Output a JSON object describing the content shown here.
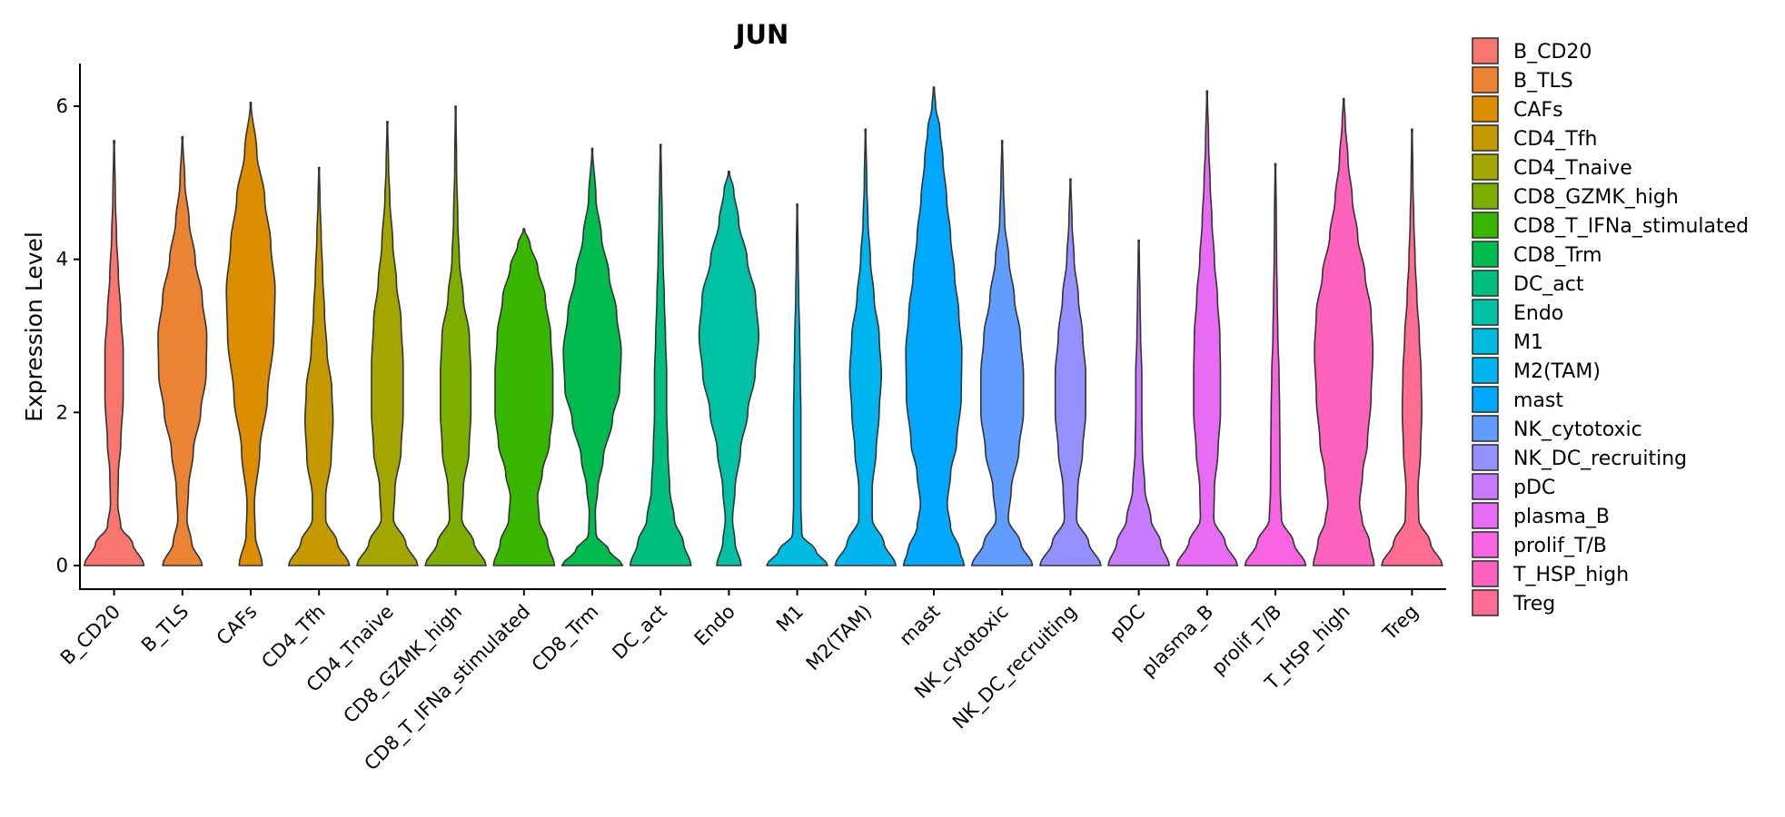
{
  "chart_data": {
    "type": "violin",
    "title": "JUN",
    "xlabel": "",
    "ylabel": "Expression Level",
    "ylim": [
      -0.2,
      6.55
    ],
    "yticks": [
      0,
      2,
      4,
      6
    ],
    "legend_position": "right",
    "grid": false,
    "categories": [
      "B_CD20",
      "B_TLS",
      "CAFs",
      "CD4_Tfh",
      "CD4_Tnaive",
      "CD8_GZMK_high",
      "CD8_T_IFNa_stimulated",
      "CD8_Trm",
      "DC_act",
      "Endo",
      "M1",
      "M2(TAM)",
      "mast",
      "NK_cytotoxic",
      "NK_DC_recruiting",
      "pDC",
      "plasma_B",
      "prolif_T/B",
      "T_HSP_high",
      "Treg"
    ],
    "series": [
      {
        "name": "B_CD20",
        "color": "#F8766D",
        "max": 5.55,
        "profile": [
          [
            0,
            0.98
          ],
          [
            0.3,
            0.6
          ],
          [
            0.5,
            0.22
          ],
          [
            0.8,
            0.12
          ],
          [
            1.2,
            0.14
          ],
          [
            1.6,
            0.22
          ],
          [
            2.2,
            0.3
          ],
          [
            2.8,
            0.3
          ],
          [
            3.3,
            0.22
          ],
          [
            3.8,
            0.14
          ],
          [
            4.3,
            0.08
          ],
          [
            4.8,
            0.04
          ],
          [
            5.55,
            0.01
          ]
        ]
      },
      {
        "name": "B_TLS",
        "color": "#EB8335",
        "max": 5.6,
        "profile": [
          [
            0,
            0.65
          ],
          [
            0.3,
            0.3
          ],
          [
            0.6,
            0.15
          ],
          [
            1.0,
            0.2
          ],
          [
            1.5,
            0.36
          ],
          [
            2.0,
            0.6
          ],
          [
            2.5,
            0.78
          ],
          [
            3.0,
            0.8
          ],
          [
            3.5,
            0.65
          ],
          [
            4.0,
            0.42
          ],
          [
            4.5,
            0.22
          ],
          [
            5.0,
            0.08
          ],
          [
            5.6,
            0.01
          ]
        ]
      },
      {
        "name": "CAFs",
        "color": "#DC8D00",
        "max": 6.05,
        "profile": [
          [
            0,
            0.38
          ],
          [
            0.4,
            0.15
          ],
          [
            0.8,
            0.12
          ],
          [
            1.5,
            0.3
          ],
          [
            2.2,
            0.55
          ],
          [
            3.0,
            0.76
          ],
          [
            3.6,
            0.8
          ],
          [
            4.2,
            0.66
          ],
          [
            4.8,
            0.46
          ],
          [
            5.4,
            0.2
          ],
          [
            6.05,
            0.01
          ]
        ]
      },
      {
        "name": "CD4_Tfh",
        "color": "#C49A00",
        "max": 5.2,
        "profile": [
          [
            0,
            1.0
          ],
          [
            0.3,
            0.6
          ],
          [
            0.6,
            0.22
          ],
          [
            0.9,
            0.22
          ],
          [
            1.4,
            0.4
          ],
          [
            1.9,
            0.46
          ],
          [
            2.3,
            0.42
          ],
          [
            2.8,
            0.26
          ],
          [
            3.3,
            0.18
          ],
          [
            3.8,
            0.12
          ],
          [
            4.3,
            0.07
          ],
          [
            4.8,
            0.03
          ],
          [
            5.2,
            0.01
          ]
        ]
      },
      {
        "name": "CD4_Tnaive",
        "color": "#A3A500",
        "max": 5.8,
        "profile": [
          [
            0,
            1.0
          ],
          [
            0.3,
            0.6
          ],
          [
            0.6,
            0.2
          ],
          [
            1.0,
            0.25
          ],
          [
            1.5,
            0.45
          ],
          [
            2.0,
            0.52
          ],
          [
            2.6,
            0.52
          ],
          [
            3.2,
            0.45
          ],
          [
            3.7,
            0.3
          ],
          [
            4.2,
            0.18
          ],
          [
            4.8,
            0.08
          ],
          [
            5.2,
            0.04
          ],
          [
            5.8,
            0.01
          ]
        ]
      },
      {
        "name": "CD8_GZMK_high",
        "color": "#7CAE00",
        "max": 6.0,
        "profile": [
          [
            0,
            1.0
          ],
          [
            0.3,
            0.6
          ],
          [
            0.6,
            0.2
          ],
          [
            1.0,
            0.25
          ],
          [
            1.5,
            0.44
          ],
          [
            2.0,
            0.5
          ],
          [
            2.5,
            0.5
          ],
          [
            3.0,
            0.45
          ],
          [
            3.5,
            0.25
          ],
          [
            4.0,
            0.12
          ],
          [
            4.5,
            0.07
          ],
          [
            5.2,
            0.03
          ],
          [
            6.0,
            0.01
          ]
        ]
      },
      {
        "name": "CD8_T_IFNa_stimulated",
        "color": "#39B600",
        "max": 4.4,
        "profile": [
          [
            0,
            1.0
          ],
          [
            0.3,
            0.78
          ],
          [
            0.6,
            0.5
          ],
          [
            0.9,
            0.45
          ],
          [
            1.2,
            0.6
          ],
          [
            1.6,
            0.84
          ],
          [
            2.0,
            0.95
          ],
          [
            2.5,
            0.95
          ],
          [
            3.0,
            0.88
          ],
          [
            3.5,
            0.7
          ],
          [
            3.9,
            0.45
          ],
          [
            4.2,
            0.2
          ],
          [
            4.4,
            0.01
          ]
        ]
      },
      {
        "name": "CD8_Trm",
        "color": "#00BB4E",
        "max": 5.45,
        "profile": [
          [
            0,
            1.0
          ],
          [
            0.2,
            0.55
          ],
          [
            0.4,
            0.12
          ],
          [
            0.7,
            0.1
          ],
          [
            1.0,
            0.18
          ],
          [
            1.4,
            0.36
          ],
          [
            1.9,
            0.66
          ],
          [
            2.3,
            0.9
          ],
          [
            2.8,
            0.95
          ],
          [
            3.3,
            0.8
          ],
          [
            3.8,
            0.55
          ],
          [
            4.3,
            0.3
          ],
          [
            4.8,
            0.12
          ],
          [
            5.45,
            0.01
          ]
        ]
      },
      {
        "name": "DC_act",
        "color": "#00BF7D",
        "max": 5.5,
        "profile": [
          [
            0,
            1.0
          ],
          [
            0.3,
            0.75
          ],
          [
            0.6,
            0.45
          ],
          [
            1.0,
            0.3
          ],
          [
            1.5,
            0.24
          ],
          [
            2.0,
            0.2
          ],
          [
            2.5,
            0.2
          ],
          [
            3.0,
            0.16
          ],
          [
            3.5,
            0.12
          ],
          [
            4.0,
            0.08
          ],
          [
            4.6,
            0.05
          ],
          [
            5.0,
            0.03
          ],
          [
            5.5,
            0.01
          ]
        ]
      },
      {
        "name": "Endo",
        "color": "#00C1A3",
        "max": 5.15,
        "profile": [
          [
            0,
            0.4
          ],
          [
            0.3,
            0.2
          ],
          [
            0.6,
            0.12
          ],
          [
            1.0,
            0.2
          ],
          [
            1.5,
            0.38
          ],
          [
            2.0,
            0.62
          ],
          [
            2.5,
            0.86
          ],
          [
            3.0,
            0.98
          ],
          [
            3.5,
            0.88
          ],
          [
            4.0,
            0.6
          ],
          [
            4.5,
            0.32
          ],
          [
            4.9,
            0.16
          ],
          [
            5.15,
            0.01
          ]
        ]
      },
      {
        "name": "M1",
        "color": "#00BAE0",
        "max": 4.72,
        "profile": [
          [
            0,
            1.0
          ],
          [
            0.2,
            0.6
          ],
          [
            0.4,
            0.15
          ],
          [
            0.8,
            0.12
          ],
          [
            1.5,
            0.12
          ],
          [
            2.0,
            0.12
          ],
          [
            2.5,
            0.1
          ],
          [
            3.0,
            0.08
          ],
          [
            3.5,
            0.05
          ],
          [
            4.0,
            0.03
          ],
          [
            4.72,
            0.01
          ]
        ]
      },
      {
        "name": "M2(TAM)",
        "color": "#00B4EF",
        "max": 5.7,
        "profile": [
          [
            0,
            1.0
          ],
          [
            0.3,
            0.6
          ],
          [
            0.6,
            0.22
          ],
          [
            1.0,
            0.22
          ],
          [
            1.5,
            0.35
          ],
          [
            2.0,
            0.45
          ],
          [
            2.5,
            0.52
          ],
          [
            3.0,
            0.45
          ],
          [
            3.5,
            0.28
          ],
          [
            4.0,
            0.16
          ],
          [
            4.5,
            0.08
          ],
          [
            5.0,
            0.04
          ],
          [
            5.7,
            0.01
          ]
        ]
      },
      {
        "name": "mast",
        "color": "#00A9FF",
        "max": 6.25,
        "profile": [
          [
            0,
            1.0
          ],
          [
            0.2,
            0.85
          ],
          [
            0.5,
            0.55
          ],
          [
            0.8,
            0.44
          ],
          [
            1.2,
            0.55
          ],
          [
            1.6,
            0.75
          ],
          [
            2.2,
            0.9
          ],
          [
            2.8,
            0.92
          ],
          [
            3.3,
            0.82
          ],
          [
            3.8,
            0.68
          ],
          [
            4.3,
            0.55
          ],
          [
            4.8,
            0.42
          ],
          [
            5.3,
            0.3
          ],
          [
            5.7,
            0.2
          ],
          [
            6.0,
            0.06
          ],
          [
            6.25,
            0.01
          ]
        ]
      },
      {
        "name": "NK_cytotoxic",
        "color": "#619CFF",
        "max": 5.55,
        "profile": [
          [
            0,
            1.0
          ],
          [
            0.3,
            0.6
          ],
          [
            0.6,
            0.2
          ],
          [
            1.0,
            0.3
          ],
          [
            1.5,
            0.55
          ],
          [
            2.0,
            0.7
          ],
          [
            2.5,
            0.7
          ],
          [
            3.0,
            0.6
          ],
          [
            3.5,
            0.4
          ],
          [
            4.0,
            0.22
          ],
          [
            4.5,
            0.08
          ],
          [
            5.0,
            0.04
          ],
          [
            5.55,
            0.01
          ]
        ]
      },
      {
        "name": "NK_DC_recruiting",
        "color": "#9590FF",
        "max": 5.05,
        "profile": [
          [
            0,
            1.0
          ],
          [
            0.3,
            0.6
          ],
          [
            0.6,
            0.2
          ],
          [
            1.0,
            0.24
          ],
          [
            1.5,
            0.4
          ],
          [
            2.0,
            0.5
          ],
          [
            2.5,
            0.5
          ],
          [
            3.0,
            0.4
          ],
          [
            3.5,
            0.26
          ],
          [
            4.0,
            0.12
          ],
          [
            4.5,
            0.05
          ],
          [
            5.05,
            0.01
          ]
        ]
      },
      {
        "name": "pDC",
        "color": "#C77CFF",
        "max": 4.25,
        "profile": [
          [
            0,
            1.0
          ],
          [
            0.3,
            0.72
          ],
          [
            0.6,
            0.4
          ],
          [
            1.0,
            0.2
          ],
          [
            1.5,
            0.12
          ],
          [
            2.0,
            0.1
          ],
          [
            2.5,
            0.1
          ],
          [
            3.0,
            0.06
          ],
          [
            3.5,
            0.04
          ],
          [
            4.0,
            0.02
          ],
          [
            4.25,
            0.01
          ]
        ]
      },
      {
        "name": "plasma_B",
        "color": "#E76BF3",
        "max": 6.2,
        "profile": [
          [
            0,
            1.0
          ],
          [
            0.3,
            0.6
          ],
          [
            0.6,
            0.22
          ],
          [
            1.0,
            0.24
          ],
          [
            1.5,
            0.36
          ],
          [
            2.0,
            0.44
          ],
          [
            2.5,
            0.44
          ],
          [
            3.0,
            0.42
          ],
          [
            3.5,
            0.34
          ],
          [
            4.0,
            0.24
          ],
          [
            4.5,
            0.16
          ],
          [
            5.0,
            0.1
          ],
          [
            5.5,
            0.05
          ],
          [
            6.2,
            0.01
          ]
        ]
      },
      {
        "name": "prolif_T/B",
        "color": "#F763E0",
        "max": 5.25,
        "profile": [
          [
            0,
            1.0
          ],
          [
            0.3,
            0.6
          ],
          [
            0.6,
            0.2
          ],
          [
            1.0,
            0.16
          ],
          [
            1.5,
            0.15
          ],
          [
            2.0,
            0.14
          ],
          [
            2.5,
            0.12
          ],
          [
            3.0,
            0.08
          ],
          [
            3.5,
            0.06
          ],
          [
            4.0,
            0.04
          ],
          [
            4.5,
            0.03
          ],
          [
            5.25,
            0.01
          ]
        ]
      },
      {
        "name": "T_HSP_high",
        "color": "#FF62BC",
        "max": 6.1,
        "profile": [
          [
            0,
            1.0
          ],
          [
            0.3,
            0.85
          ],
          [
            0.6,
            0.6
          ],
          [
            0.8,
            0.52
          ],
          [
            1.2,
            0.62
          ],
          [
            1.6,
            0.78
          ],
          [
            2.2,
            0.9
          ],
          [
            2.8,
            0.96
          ],
          [
            3.3,
            0.9
          ],
          [
            3.8,
            0.7
          ],
          [
            4.3,
            0.46
          ],
          [
            4.8,
            0.28
          ],
          [
            5.3,
            0.14
          ],
          [
            5.8,
            0.05
          ],
          [
            6.1,
            0.01
          ]
        ]
      },
      {
        "name": "Treg",
        "color": "#FF6C91",
        "max": 5.7,
        "profile": [
          [
            0,
            1.0
          ],
          [
            0.3,
            0.6
          ],
          [
            0.6,
            0.22
          ],
          [
            1.0,
            0.2
          ],
          [
            1.5,
            0.28
          ],
          [
            2.0,
            0.32
          ],
          [
            2.5,
            0.3
          ],
          [
            3.0,
            0.24
          ],
          [
            3.5,
            0.16
          ],
          [
            4.0,
            0.1
          ],
          [
            4.5,
            0.06
          ],
          [
            5.0,
            0.03
          ],
          [
            5.7,
            0.01
          ]
        ]
      }
    ]
  }
}
